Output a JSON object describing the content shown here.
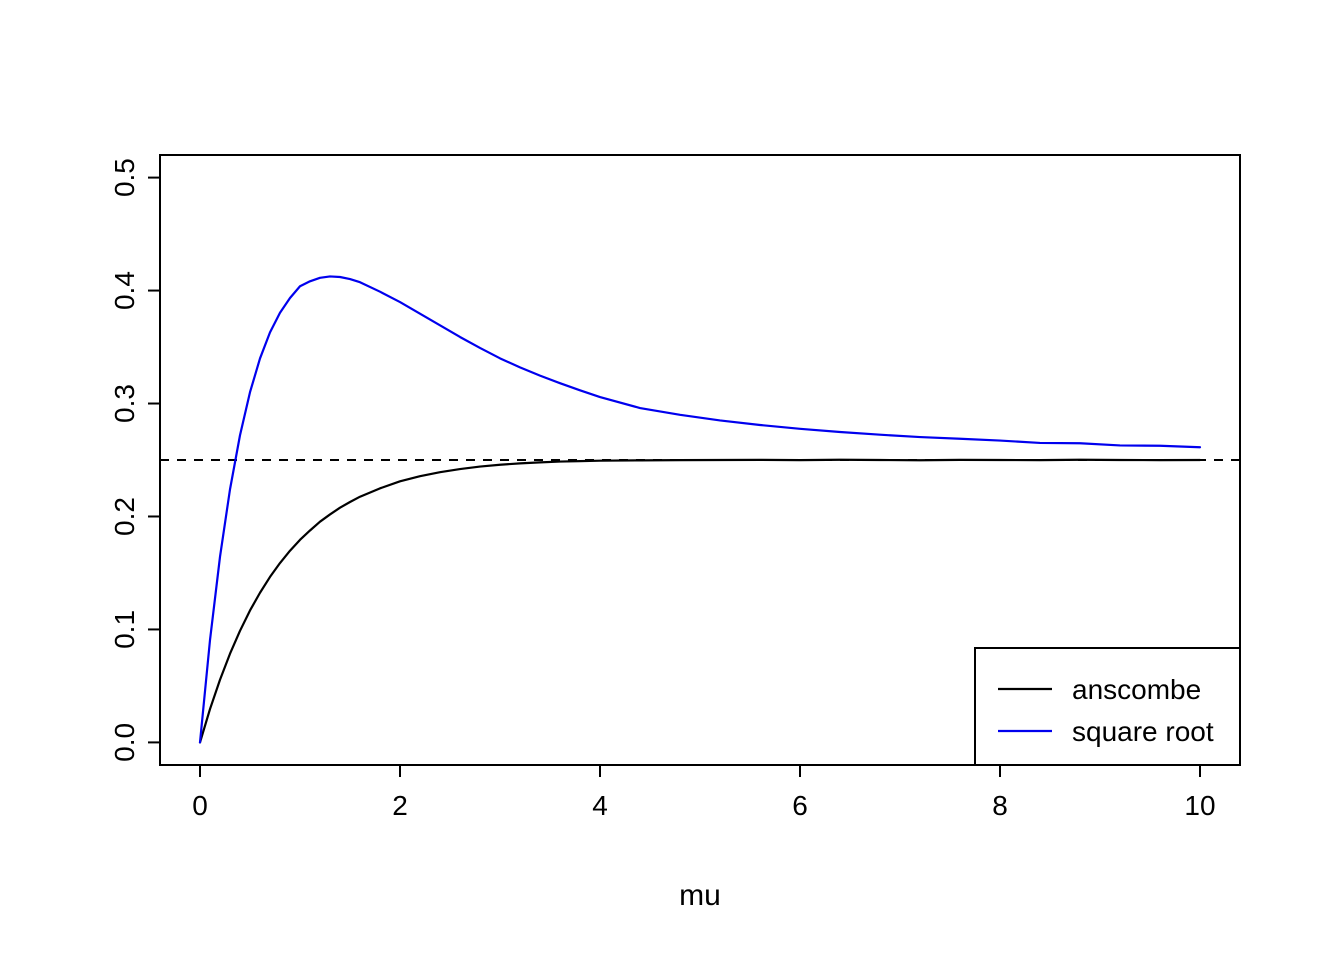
{
  "figure": {
    "background": "#FFFFFF",
    "axis_color": "#000000",
    "text_color": "#000000"
  },
  "chart_data": {
    "type": "line",
    "title": "",
    "xlabel": "mu",
    "ylabel": "",
    "xlim": [
      0,
      10
    ],
    "ylim": [
      0.0,
      0.5
    ],
    "grid": false,
    "x_ticks": [
      0,
      2,
      4,
      6,
      8,
      10
    ],
    "x_tick_labels": [
      "0",
      "2",
      "4",
      "6",
      "8",
      "10"
    ],
    "y_ticks": [
      0.0,
      0.1,
      0.2,
      0.3,
      0.4,
      0.5
    ],
    "y_tick_labels": [
      "0.0",
      "0.1",
      "0.2",
      "0.3",
      "0.4",
      "0.5"
    ],
    "reference_line": {
      "y": 0.25,
      "style": "dashed",
      "color": "#000000"
    },
    "legend": {
      "position": "bottomright",
      "entries": [
        {
          "label": "anscombe",
          "color": "#000000"
        },
        {
          "label": "square root",
          "color": "#0000EE"
        }
      ]
    },
    "x": [
      0,
      0.1,
      0.2,
      0.3,
      0.4,
      0.5,
      0.6,
      0.7,
      0.8,
      0.9,
      1.0,
      1.1,
      1.2,
      1.3,
      1.4,
      1.5,
      1.6,
      1.8,
      2.0,
      2.2,
      2.4,
      2.6,
      2.8,
      3.0,
      3.2,
      3.4,
      3.6,
      3.8,
      4.0,
      4.4,
      4.8,
      5.2,
      5.6,
      6.0,
      6.4,
      6.8,
      7.2,
      7.6,
      8.0,
      8.4,
      8.8,
      9.2,
      9.6,
      10.0
    ],
    "series": [
      {
        "name": "anscombe",
        "color": "#000000",
        "values": [
          0,
          0.0295,
          0.0555,
          0.0785,
          0.0988,
          0.1168,
          0.1325,
          0.1465,
          0.1588,
          0.1697,
          0.1793,
          0.1876,
          0.1954,
          0.2018,
          0.2078,
          0.2128,
          0.2175,
          0.2249,
          0.2311,
          0.2357,
          0.2392,
          0.242,
          0.2442,
          0.2458,
          0.247,
          0.2479,
          0.2486,
          0.249,
          0.2494,
          0.2497,
          0.2499,
          0.25,
          0.2501,
          0.2499,
          0.2502,
          0.25,
          0.2498,
          0.2501,
          0.25,
          0.2499,
          0.2502,
          0.25,
          0.2499,
          0.25
        ]
      },
      {
        "name": "square root",
        "color": "#0000EE",
        "values": [
          0,
          0.0906,
          0.1643,
          0.224,
          0.2719,
          0.31,
          0.3399,
          0.363,
          0.3804,
          0.3934,
          0.4038,
          0.4082,
          0.4113,
          0.4125,
          0.412,
          0.4102,
          0.4074,
          0.399,
          0.3898,
          0.3795,
          0.3692,
          0.3589,
          0.3492,
          0.34,
          0.332,
          0.3247,
          0.318,
          0.3117,
          0.3057,
          0.296,
          0.29,
          0.285,
          0.281,
          0.2776,
          0.2748,
          0.2724,
          0.2703,
          0.2688,
          0.2672,
          0.2651,
          0.2648,
          0.2629,
          0.2626,
          0.2613
        ]
      }
    ]
  }
}
